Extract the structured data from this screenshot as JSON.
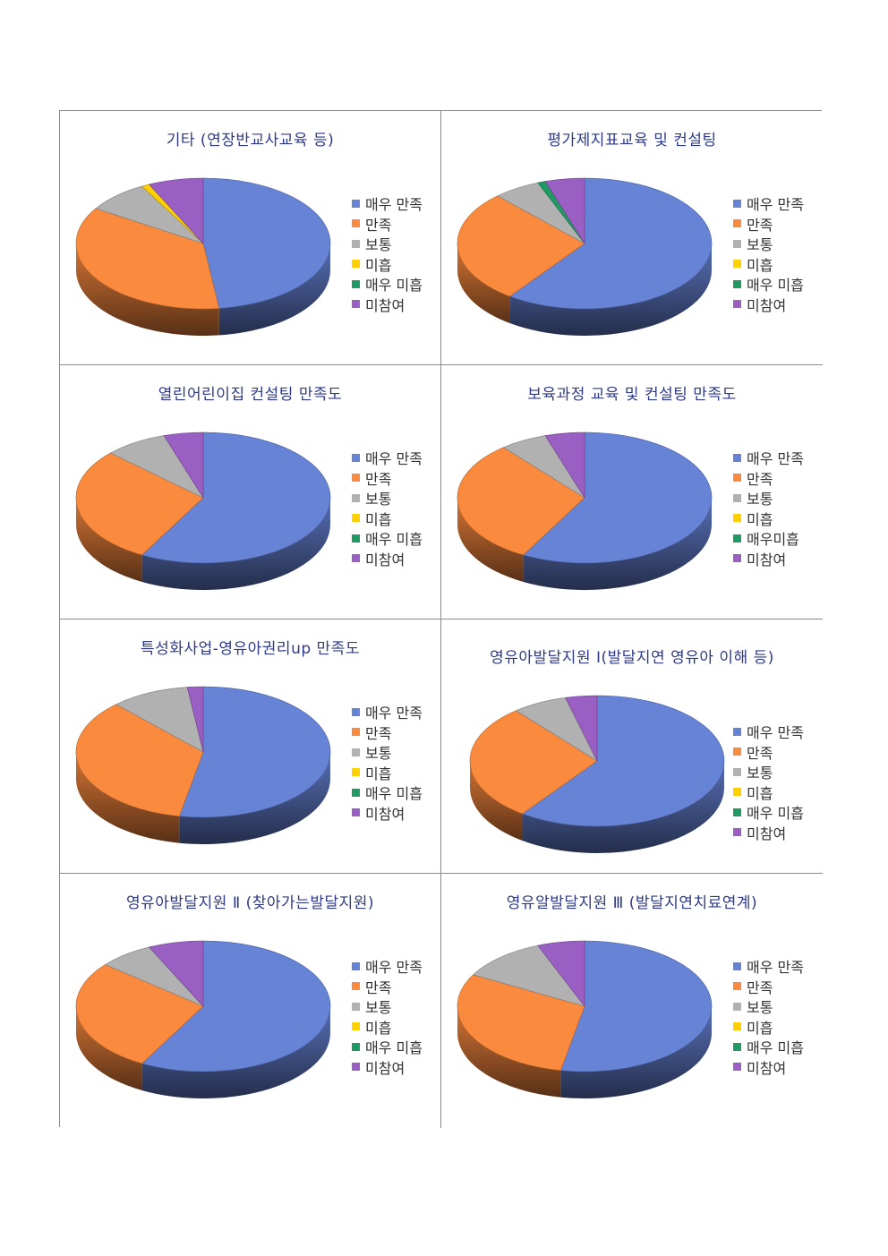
{
  "colors": {
    "very_satisfied": "#6683d6",
    "satisfied": "#fa8a3e",
    "neutral": "#b1b1b1",
    "dissatisfied": "#ffd000",
    "very_dissatisfied": "#1f9a63",
    "not_participated": "#9a5fc2"
  },
  "chart_data": [
    {
      "type": "pie",
      "title": "기타 (연장반교사교육 등)",
      "labels": [
        "매우 만족",
        "만족",
        "보통",
        "미흡",
        "매우 미흡",
        "미참여"
      ],
      "values": [
        48,
        36,
        8,
        1,
        0,
        7
      ]
    },
    {
      "type": "pie",
      "title": "평가제지표교육 및 컨설팅",
      "labels": [
        "매우 만족",
        "만족",
        "보통",
        "미흡",
        "매우 미흡",
        "미참여"
      ],
      "values": [
        60,
        28,
        6,
        0,
        1,
        5
      ]
    },
    {
      "type": "pie",
      "title": "열린어린이집  컨설팅 만족도",
      "labels": [
        "매우 만족",
        "만족",
        "보통",
        "미흡",
        "매우 미흡",
        "미참여"
      ],
      "values": [
        58,
        29,
        8,
        0,
        0,
        5
      ]
    },
    {
      "type": "pie",
      "title": "보육과정 교육 및 컨설팅 만족도",
      "labels": [
        "매우 만족",
        "만족",
        "보통",
        "미흡",
        "매우미흡",
        "미참여"
      ],
      "values": [
        58,
        31,
        6,
        0,
        0,
        5
      ]
    },
    {
      "type": "pie",
      "title": "특성화사업-영유아권리up 만족도",
      "labels": [
        "매우 만족",
        "만족",
        "보통",
        "미흡",
        "매우 미흡",
        "미참여"
      ],
      "values": [
        53,
        35,
        10,
        0,
        0,
        2
      ]
    },
    {
      "type": "pie",
      "title": "영유아발달지원 Ⅰ(발달지연 영유아 이해 등)",
      "labels": [
        "매우 만족",
        "만족",
        "보통",
        "미흡",
        "매우 미흡",
        "미참여"
      ],
      "values": [
        60,
        29,
        7,
        0,
        0,
        4
      ]
    },
    {
      "type": "pie",
      "title": "영유아발달지원 Ⅱ (찾아가는발달지원)",
      "labels": [
        "매우 만족",
        "만족",
        "보통",
        "미흡",
        "매우 미흡",
        "미참여"
      ],
      "values": [
        58,
        28,
        7,
        0,
        0,
        7
      ]
    },
    {
      "type": "pie",
      "title": "영유알발달지원 Ⅲ (발달지연치료연계)",
      "labels": [
        "매우 만족",
        "만족",
        "보통",
        "미흡",
        "매우 미흡",
        "미참여"
      ],
      "values": [
        53,
        30,
        11,
        0,
        0,
        6
      ]
    }
  ]
}
